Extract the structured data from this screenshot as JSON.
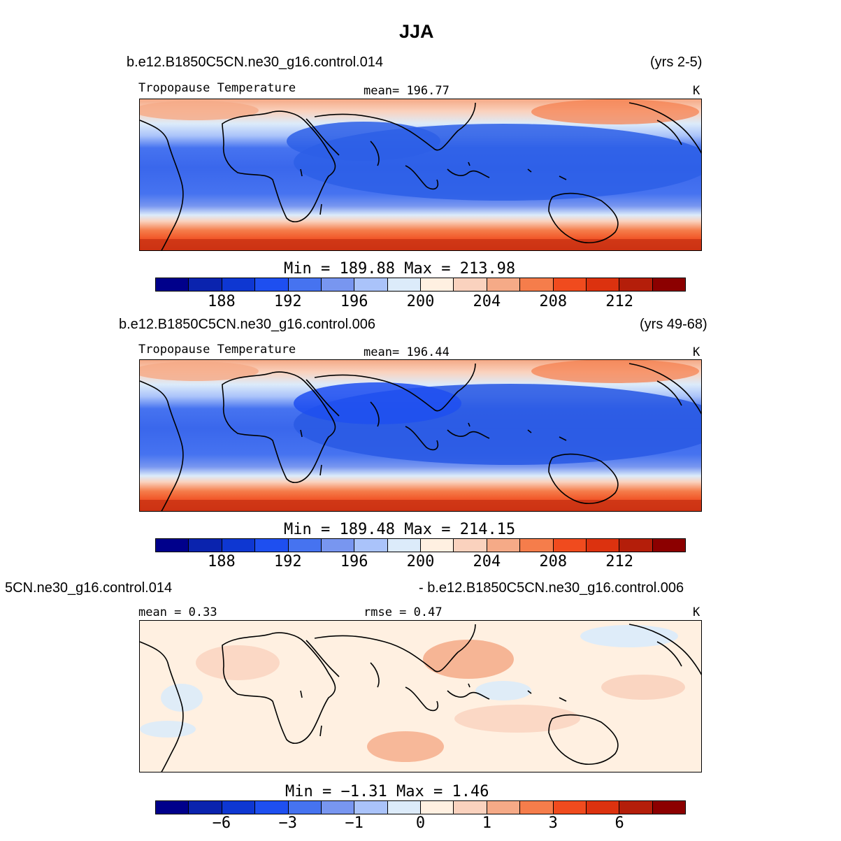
{
  "chart_data": [
    {
      "type": "heatmap",
      "title": "JJA",
      "case_name": "b.e12.B1850C5CN.ne30_g16.control.014",
      "years": "(yrs 2-5)",
      "variable": "Tropopause Temperature",
      "stat_label": "mean=",
      "stat_value": "196.77",
      "units": "K",
      "min_label": "Min =",
      "min_value": "189.88",
      "max_label": "Max =",
      "max_value": "213.98",
      "colorbar_ticks": [
        "188",
        "192",
        "196",
        "200",
        "204",
        "208",
        "212"
      ],
      "field_min": 189.88,
      "field_max": 213.98
    },
    {
      "type": "heatmap",
      "case_name": "b.e12.B1850C5CN.ne30_g16.control.006",
      "years": "(yrs 49-68)",
      "variable": "Tropopause Temperature",
      "stat_label": "mean=",
      "stat_value": "196.44",
      "units": "K",
      "min_label": "Min =",
      "min_value": "189.48",
      "max_label": "Max =",
      "max_value": "214.15",
      "colorbar_ticks": [
        "188",
        "192",
        "196",
        "200",
        "204",
        "208",
        "212"
      ],
      "field_min": 189.48,
      "field_max": 214.15
    },
    {
      "type": "heatmap",
      "case_name": "5CN.ne30_g16.control.014",
      "years": "- b.e12.B1850C5CN.ne30_g16.control.006",
      "stat_label": "mean =",
      "stat_value": "0.33",
      "stat2_label": "rmse =",
      "stat2_value": "0.47",
      "units": "K",
      "min_label": "Min =",
      "min_value": "−1.31",
      "max_label": "Max =",
      "max_value": "1.46",
      "colorbar_ticks": [
        "−6",
        "−3",
        "−1",
        "0",
        "1",
        "3",
        "6"
      ],
      "field_min": -1.31,
      "field_max": 1.46
    }
  ],
  "colorbar_colors": [
    "#00008b",
    "#0a23ae",
    "#0e37d2",
    "#1e4ff0",
    "#4673f0",
    "#7896f0",
    "#aac3fa",
    "#dcebfa",
    "#fff0e1",
    "#fad2be",
    "#f5aa87",
    "#f57d4b",
    "#f04b1e",
    "#dc320f",
    "#b41e0a",
    "#8c0000"
  ],
  "colors": {
    "land_outline": "#000000",
    "warm_edge": "#e04a1c",
    "cool_core": "#2d63e8"
  }
}
